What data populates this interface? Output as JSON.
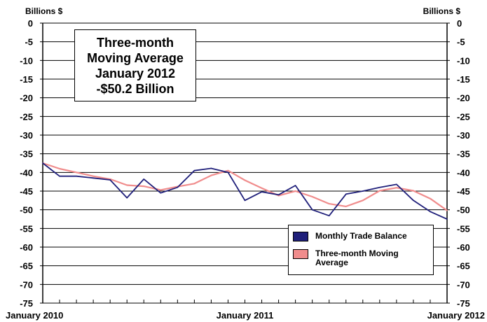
{
  "colors": {
    "monthly": "#1f1f7a",
    "moving_average": "#f08c8c",
    "grid": "#000000",
    "background": "#ffffff"
  },
  "y_unit_left": "Billions $",
  "y_unit_right": "Billions $",
  "annotation": {
    "lines": [
      "Three-month",
      "Moving Average",
      "January 2012",
      "-$50.2 Billion"
    ]
  },
  "legend": {
    "items": [
      {
        "label": "Monthly Trade Balance",
        "color": "#1f1f7a"
      },
      {
        "label": "Three-month Moving Average",
        "color": "#f08c8c"
      }
    ]
  },
  "chart_data": {
    "type": "line",
    "ylim": [
      -75,
      0
    ],
    "yticks": [
      0,
      -5,
      -10,
      -15,
      -20,
      -25,
      -30,
      -35,
      -40,
      -45,
      -50,
      -55,
      -60,
      -65,
      -70,
      -75
    ],
    "x_tick_labels": [
      {
        "month_index": 0,
        "label": "January 2010"
      },
      {
        "month_index": 12,
        "label": "January 2011"
      },
      {
        "month_index": 24,
        "label": "January 2012"
      }
    ],
    "x": [
      0,
      1,
      2,
      3,
      4,
      5,
      6,
      7,
      8,
      9,
      10,
      11,
      12,
      13,
      14,
      15,
      16,
      17,
      18,
      19,
      20,
      21,
      22,
      23,
      24
    ],
    "series": [
      {
        "name": "Monthly Trade Balance",
        "values": [
          -37.5,
          -41.0,
          -41.0,
          -41.5,
          -42.0,
          -46.8,
          -41.8,
          -45.5,
          -44.0,
          -39.5,
          -38.9,
          -40.0,
          -47.5,
          -45.2,
          -46.0,
          -43.5,
          -50.0,
          -51.6,
          -45.8,
          -45.0,
          -44.0,
          -43.2,
          -47.5,
          -50.5,
          -52.5
        ]
      },
      {
        "name": "Three-month Moving Average",
        "values": [
          -37.5,
          -39.0,
          -40.0,
          -41.0,
          -41.8,
          -43.4,
          -43.7,
          -44.7,
          -43.8,
          -43.0,
          -40.8,
          -39.5,
          -42.1,
          -44.2,
          -46.2,
          -45.0,
          -46.5,
          -48.4,
          -49.1,
          -47.5,
          -44.9,
          -44.1,
          -44.9,
          -47.0,
          -50.2
        ]
      }
    ]
  }
}
